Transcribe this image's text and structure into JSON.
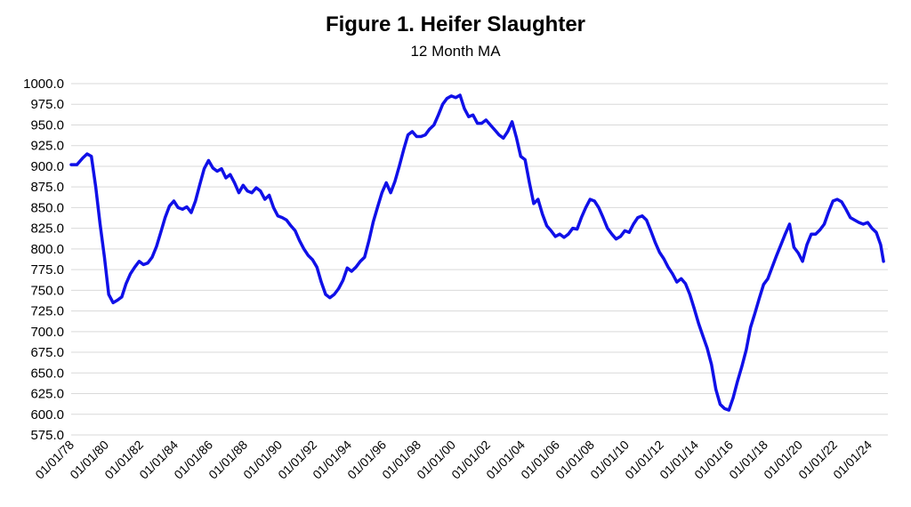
{
  "chart_data": {
    "type": "line",
    "title": "Figure 1. Heifer Slaughter",
    "subtitle": "12 Month MA",
    "xlabel": "",
    "ylabel": "",
    "ylim": [
      575,
      1000
    ],
    "yticks": [
      "575.0",
      "600.0",
      "625.0",
      "650.0",
      "675.0",
      "700.0",
      "725.0",
      "750.0",
      "775.0",
      "800.0",
      "825.0",
      "850.0",
      "875.0",
      "900.0",
      "925.0",
      "950.0",
      "975.0",
      "1000.0"
    ],
    "xticks": [
      "01/01/78",
      "01/01/80",
      "01/01/82",
      "01/01/84",
      "01/01/86",
      "01/01/88",
      "01/01/90",
      "01/01/92",
      "01/01/94",
      "01/01/96",
      "01/01/98",
      "01/01/00",
      "01/01/02",
      "01/01/04",
      "01/01/06",
      "01/01/08",
      "01/01/10",
      "01/01/12",
      "01/01/14",
      "01/01/16",
      "01/01/18",
      "01/01/20",
      "01/01/22",
      "01/01/24"
    ],
    "x_start": "1978-01",
    "grid": true,
    "line_color": "#1010e8",
    "series": [
      {
        "points": [
          [
            "1978-01",
            902
          ],
          [
            "1978-05",
            902
          ],
          [
            "1978-09",
            910
          ],
          [
            "1978-12",
            915
          ],
          [
            "1979-03",
            912
          ],
          [
            "1979-06",
            875
          ],
          [
            "1979-09",
            830
          ],
          [
            "1979-12",
            790
          ],
          [
            "1980-03",
            745
          ],
          [
            "1980-06",
            735
          ],
          [
            "1980-09",
            738
          ],
          [
            "1980-12",
            742
          ],
          [
            "1981-03",
            758
          ],
          [
            "1981-06",
            770
          ],
          [
            "1981-09",
            778
          ],
          [
            "1981-12",
            785
          ],
          [
            "1982-03",
            781
          ],
          [
            "1982-06",
            783
          ],
          [
            "1982-09",
            790
          ],
          [
            "1982-12",
            803
          ],
          [
            "1983-03",
            820
          ],
          [
            "1983-06",
            838
          ],
          [
            "1983-09",
            852
          ],
          [
            "1983-12",
            858
          ],
          [
            "1984-03",
            850
          ],
          [
            "1984-06",
            848
          ],
          [
            "1984-09",
            851
          ],
          [
            "1984-12",
            844
          ],
          [
            "1985-03",
            858
          ],
          [
            "1985-06",
            878
          ],
          [
            "1985-09",
            897
          ],
          [
            "1985-12",
            907
          ],
          [
            "1986-03",
            898
          ],
          [
            "1986-06",
            894
          ],
          [
            "1986-09",
            897
          ],
          [
            "1986-12",
            886
          ],
          [
            "1987-03",
            890
          ],
          [
            "1987-06",
            880
          ],
          [
            "1987-09",
            868
          ],
          [
            "1987-12",
            877
          ],
          [
            "1988-03",
            870
          ],
          [
            "1988-06",
            868
          ],
          [
            "1988-09",
            874
          ],
          [
            "1988-12",
            870
          ],
          [
            "1989-03",
            860
          ],
          [
            "1989-06",
            865
          ],
          [
            "1989-09",
            850
          ],
          [
            "1989-12",
            840
          ],
          [
            "1990-03",
            838
          ],
          [
            "1990-06",
            835
          ],
          [
            "1990-09",
            828
          ],
          [
            "1990-12",
            822
          ],
          [
            "1991-03",
            810
          ],
          [
            "1991-06",
            800
          ],
          [
            "1991-09",
            792
          ],
          [
            "1991-12",
            787
          ],
          [
            "1992-03",
            778
          ],
          [
            "1992-06",
            760
          ],
          [
            "1992-09",
            745
          ],
          [
            "1992-12",
            741
          ],
          [
            "1993-03",
            745
          ],
          [
            "1993-06",
            752
          ],
          [
            "1993-09",
            762
          ],
          [
            "1993-12",
            777
          ],
          [
            "1994-03",
            773
          ],
          [
            "1994-06",
            778
          ],
          [
            "1994-09",
            785
          ],
          [
            "1994-12",
            790
          ],
          [
            "1995-03",
            810
          ],
          [
            "1995-06",
            833
          ],
          [
            "1995-09",
            851
          ],
          [
            "1995-12",
            868
          ],
          [
            "1996-03",
            880
          ],
          [
            "1996-06",
            868
          ],
          [
            "1996-09",
            882
          ],
          [
            "1996-12",
            900
          ],
          [
            "1997-03",
            920
          ],
          [
            "1997-06",
            938
          ],
          [
            "1997-09",
            942
          ],
          [
            "1997-12",
            936
          ],
          [
            "1998-03",
            936
          ],
          [
            "1998-06",
            938
          ],
          [
            "1998-09",
            945
          ],
          [
            "1998-12",
            950
          ],
          [
            "1999-03",
            962
          ],
          [
            "1999-06",
            975
          ],
          [
            "1999-09",
            982
          ],
          [
            "1999-12",
            985
          ],
          [
            "2000-03",
            983
          ],
          [
            "2000-06",
            986
          ],
          [
            "2000-09",
            970
          ],
          [
            "2000-12",
            960
          ],
          [
            "2001-03",
            962
          ],
          [
            "2001-06",
            952
          ],
          [
            "2001-09",
            952
          ],
          [
            "2001-12",
            956
          ],
          [
            "2002-03",
            950
          ],
          [
            "2002-06",
            944
          ],
          [
            "2002-09",
            938
          ],
          [
            "2002-12",
            934
          ],
          [
            "2003-03",
            942
          ],
          [
            "2003-06",
            954
          ],
          [
            "2003-09",
            935
          ],
          [
            "2003-12",
            912
          ],
          [
            "2004-03",
            908
          ],
          [
            "2004-06",
            880
          ],
          [
            "2004-09",
            855
          ],
          [
            "2004-12",
            860
          ],
          [
            "2005-03",
            842
          ],
          [
            "2005-06",
            828
          ],
          [
            "2005-09",
            822
          ],
          [
            "2005-12",
            815
          ],
          [
            "2006-03",
            818
          ],
          [
            "2006-06",
            814
          ],
          [
            "2006-09",
            818
          ],
          [
            "2006-12",
            825
          ],
          [
            "2007-03",
            824
          ],
          [
            "2007-06",
            838
          ],
          [
            "2007-09",
            850
          ],
          [
            "2007-12",
            860
          ],
          [
            "2008-03",
            858
          ],
          [
            "2008-06",
            850
          ],
          [
            "2008-09",
            838
          ],
          [
            "2008-12",
            825
          ],
          [
            "2009-03",
            818
          ],
          [
            "2009-06",
            812
          ],
          [
            "2009-09",
            815
          ],
          [
            "2009-12",
            822
          ],
          [
            "2010-03",
            820
          ],
          [
            "2010-06",
            830
          ],
          [
            "2010-09",
            838
          ],
          [
            "2010-12",
            840
          ],
          [
            "2011-03",
            835
          ],
          [
            "2011-06",
            822
          ],
          [
            "2011-09",
            808
          ],
          [
            "2011-12",
            796
          ],
          [
            "2012-03",
            788
          ],
          [
            "2012-06",
            778
          ],
          [
            "2012-09",
            770
          ],
          [
            "2012-12",
            760
          ],
          [
            "2013-03",
            764
          ],
          [
            "2013-06",
            758
          ],
          [
            "2013-09",
            745
          ],
          [
            "2013-12",
            728
          ],
          [
            "2014-03",
            710
          ],
          [
            "2014-06",
            695
          ],
          [
            "2014-09",
            680
          ],
          [
            "2014-12",
            660
          ],
          [
            "2015-03",
            630
          ],
          [
            "2015-06",
            612
          ],
          [
            "2015-09",
            607
          ],
          [
            "2015-12",
            605
          ],
          [
            "2016-03",
            620
          ],
          [
            "2016-06",
            640
          ],
          [
            "2016-09",
            658
          ],
          [
            "2016-12",
            678
          ],
          [
            "2017-03",
            705
          ],
          [
            "2017-06",
            722
          ],
          [
            "2017-09",
            740
          ],
          [
            "2017-12",
            757
          ],
          [
            "2018-03",
            764
          ],
          [
            "2018-06",
            778
          ],
          [
            "2018-09",
            792
          ],
          [
            "2018-12",
            805
          ],
          [
            "2019-03",
            818
          ],
          [
            "2019-06",
            830
          ],
          [
            "2019-09",
            802
          ],
          [
            "2019-12",
            795
          ],
          [
            "2020-03",
            785
          ],
          [
            "2020-06",
            805
          ],
          [
            "2020-09",
            818
          ],
          [
            "2020-12",
            818
          ],
          [
            "2021-03",
            823
          ],
          [
            "2021-06",
            830
          ],
          [
            "2021-09",
            845
          ],
          [
            "2021-12",
            858
          ],
          [
            "2022-03",
            860
          ],
          [
            "2022-06",
            857
          ],
          [
            "2022-09",
            848
          ],
          [
            "2022-12",
            838
          ],
          [
            "2023-03",
            835
          ],
          [
            "2023-06",
            832
          ],
          [
            "2023-09",
            830
          ],
          [
            "2023-12",
            832
          ],
          [
            "2024-03",
            825
          ],
          [
            "2024-06",
            820
          ],
          [
            "2024-09",
            805
          ],
          [
            "2024-11",
            785
          ]
        ]
      }
    ]
  }
}
